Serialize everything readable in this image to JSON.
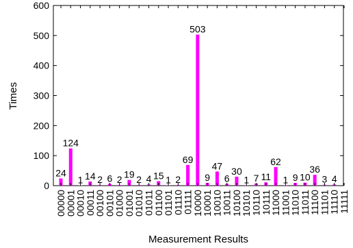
{
  "chart_data": {
    "type": "bar",
    "xlabel": "Measurement Results",
    "ylabel": "Times",
    "ylim": [
      0,
      600
    ],
    "yticks": [
      0,
      100,
      200,
      300,
      400,
      500,
      600
    ],
    "grid": false,
    "bar_color": "#ff00ff",
    "categories": [
      "00000",
      "00001",
      "00010",
      "00011",
      "00100",
      "00101",
      "01000",
      "01001",
      "01010",
      "01011",
      "01100",
      "01101",
      "01110",
      "01111",
      "10000",
      "10001",
      "10010",
      "10011",
      "10100",
      "10101",
      "10110",
      "10111",
      "11000",
      "11001",
      "11010",
      "11011",
      "11100",
      "11101",
      "11110",
      "11111"
    ],
    "values": [
      24,
      124,
      1,
      14,
      2,
      6,
      2,
      19,
      2,
      4,
      15,
      1,
      2,
      69,
      503,
      9,
      47,
      6,
      30,
      1,
      7,
      11,
      62,
      1,
      9,
      10,
      36,
      3,
      4,
      0
    ]
  }
}
